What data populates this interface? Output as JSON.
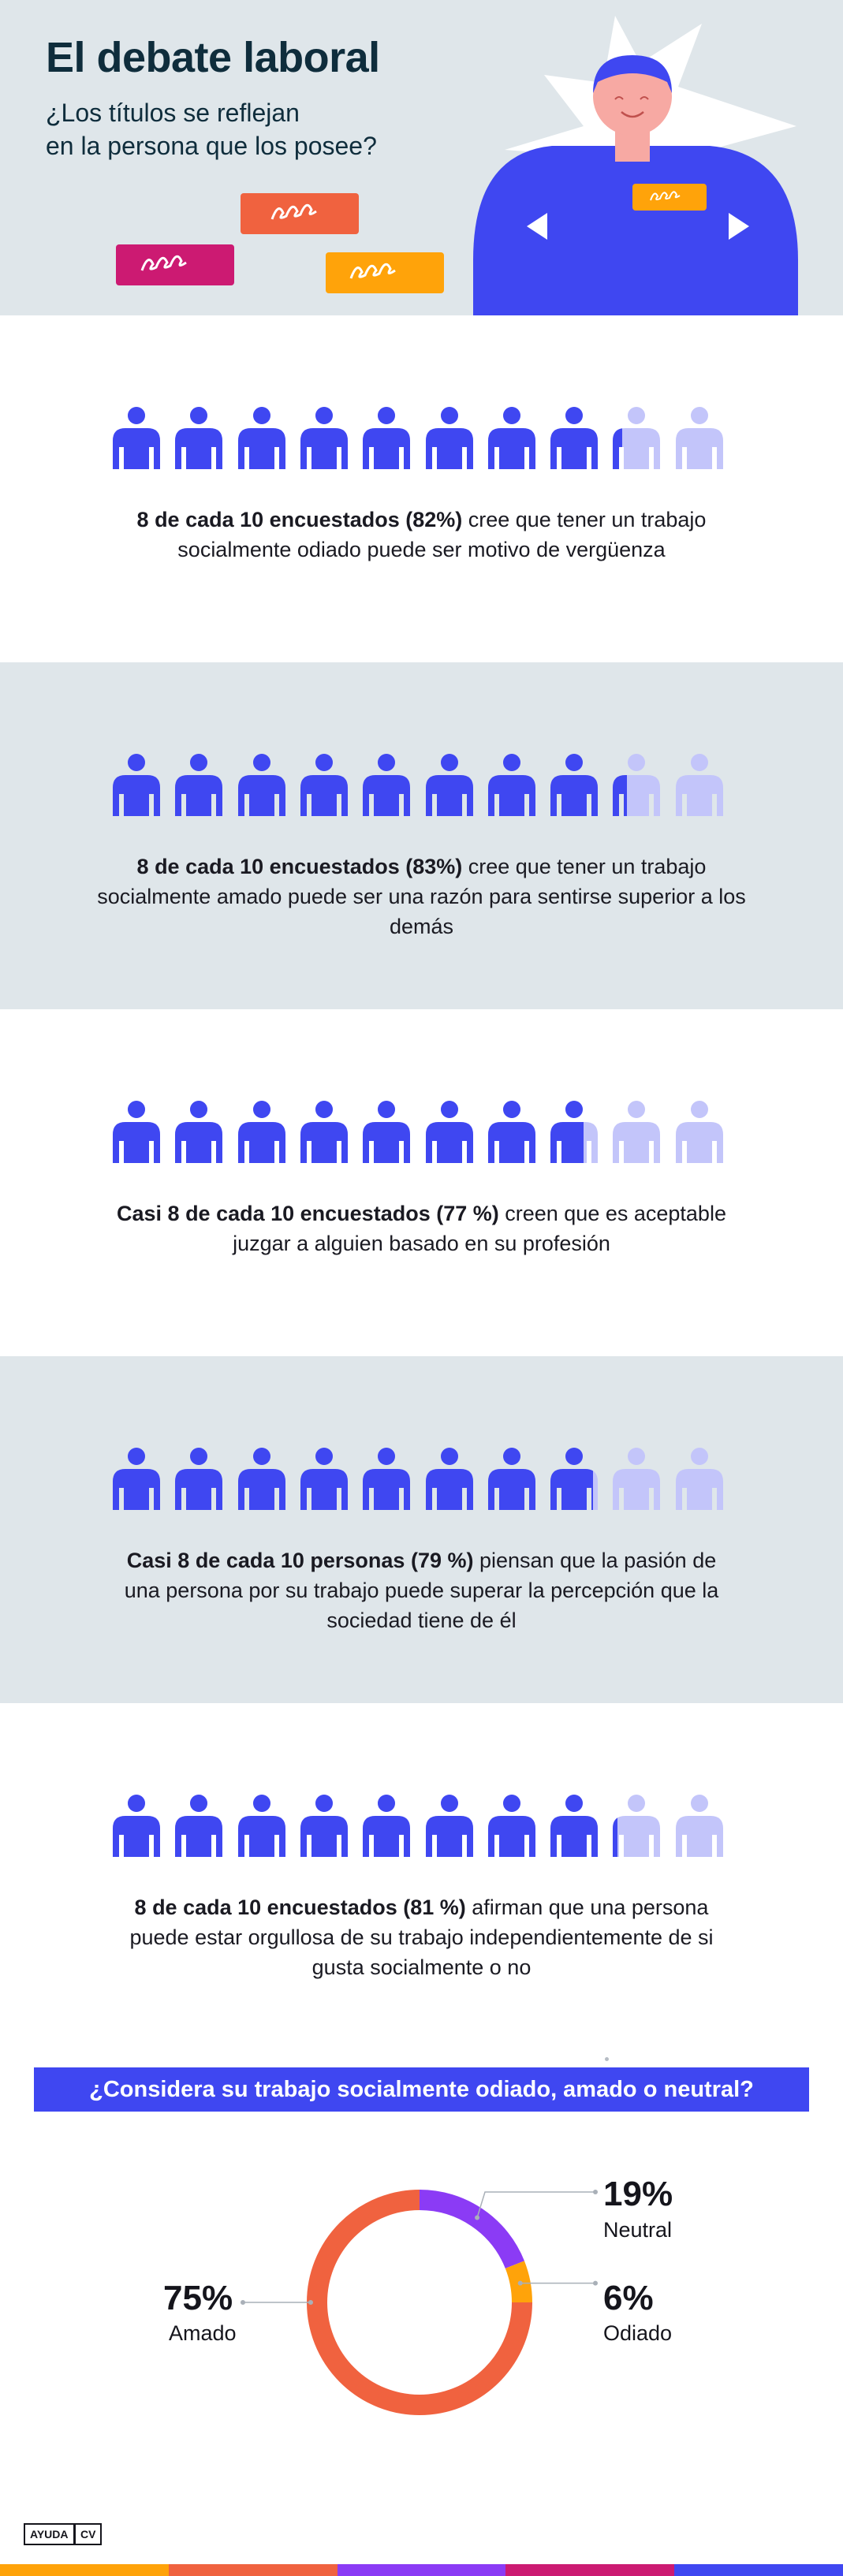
{
  "header": {
    "title": "El debate laboral",
    "subtitle_line1": "¿Los títulos se reflejan",
    "subtitle_line2": "en la persona que los posee?"
  },
  "colors": {
    "bg_gray": "#dfe6ea",
    "primary_blue": "#3f47f1",
    "light_blue": "#c3c5fa",
    "coral": "#f0623f",
    "magenta": "#cc1a72",
    "orange": "#ffa30a",
    "purple": "#8b3bf5",
    "skin": "#f7a9a3",
    "dark_navy": "#0f2d3c"
  },
  "header_icons": [
    "speech-bubble-coral-icon",
    "speech-bubble-magenta-icon",
    "speech-bubble-orange-icon",
    "person-illustration-icon",
    "name-tag-icon"
  ],
  "stats": [
    {
      "percent": 82,
      "bold": "8 de cada 10 encuestados (82%)",
      "rest": " cree que tener un trabajo socialmente odiado puede ser motivo de vergüenza"
    },
    {
      "percent": 83,
      "bold": "8 de cada 10 encuestados (83%)",
      "rest": " cree que tener un trabajo socialmente amado puede ser una razón para sentirse superior a los demás"
    },
    {
      "percent": 77,
      "bold": "Casi 8 de cada 10 encuestados (77 %)",
      "rest": " creen que es aceptable juzgar a alguien basado en su profesión"
    },
    {
      "percent": 79,
      "bold": "Casi 8 de cada 10 personas (79 %)",
      "rest": " piensan que la pasión de una persona por su trabajo puede superar la percepción que la sociedad tiene de él"
    },
    {
      "percent": 81,
      "bold": "8 de cada 10 encuestados (81 %)",
      "rest": " afirman que una persona puede estar orgullosa de su trabajo independientemente de si gusta socialmente o no"
    }
  ],
  "question": "¿Considera su trabajo socialmente odiado, amado o neutral?",
  "chart_data": {
    "type": "pie",
    "title": "¿Considera su trabajo socialmente odiado, amado o neutral?",
    "categories": [
      "Amado",
      "Neutral",
      "Odiado"
    ],
    "values": [
      75,
      19,
      6
    ],
    "value_labels": [
      "75%",
      "19%",
      "6%"
    ],
    "colors": [
      "#f0623f",
      "#8b3bf5",
      "#ffa30a"
    ],
    "donut": true
  },
  "footer": {
    "logo_part1": "AYUDA",
    "logo_part2": "CV",
    "stripe_colors": [
      "#ffa30a",
      "#f0623f",
      "#8b3bf5",
      "#cc1a72",
      "#3f47f1"
    ]
  }
}
